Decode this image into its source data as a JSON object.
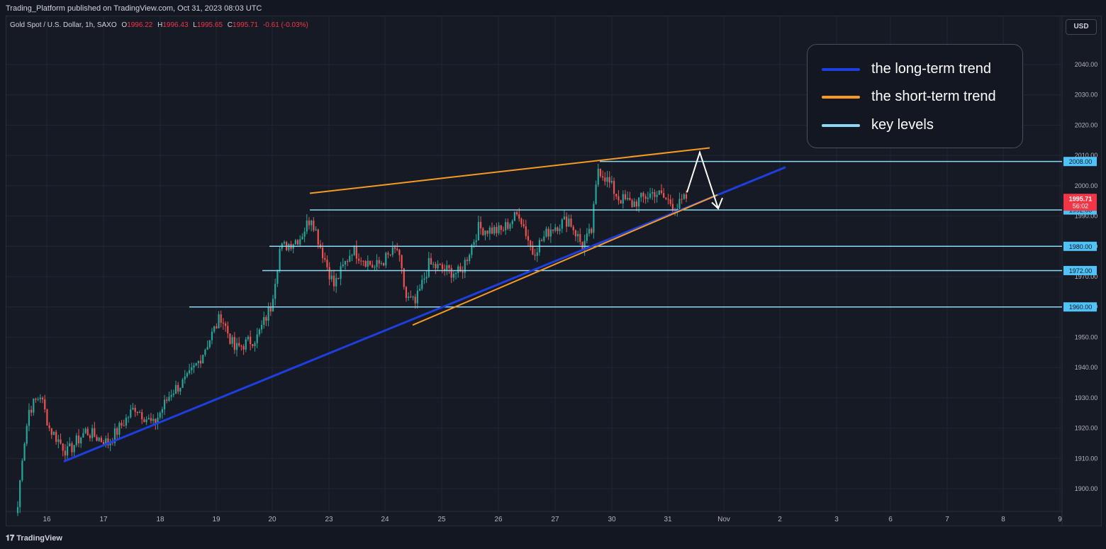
{
  "header": {
    "publish_line": "Trading_Platform published on TradingView.com, Oct 31, 2023 08:03 UTC"
  },
  "symbol": {
    "name": "Gold Spot / U.S. Dollar, 1h, SAXO",
    "open_label": "O",
    "open": "1996.22",
    "high_label": "H",
    "high": "1996.43",
    "low_label": "L",
    "low": "1995.65",
    "close_label": "C",
    "close": "1995.71",
    "change": "-0.61 (-0.03%)"
  },
  "currency_button": "USD",
  "legend": {
    "items": [
      {
        "label": "the long-term trend",
        "color": "#1e3fe0"
      },
      {
        "label": "the short-term trend",
        "color": "#f59a23"
      },
      {
        "label": "key levels",
        "color": "#8fd8f5"
      }
    ]
  },
  "footer": {
    "logo_icon": "tradingview-logo-icon",
    "brand": "TradingView"
  },
  "colors": {
    "up": "#26a69a",
    "down": "#ef5350",
    "long_trend": "#1e3fe0",
    "short_trend": "#f59a23",
    "key_level": "#8fd8f5",
    "price_label_bg": "#f23645",
    "level_label_bg": "#4fc3f7"
  },
  "chart_data": {
    "type": "candlestick",
    "title": "Gold Spot / U.S. Dollar, 1h, SAXO",
    "x_ticks": [
      "16",
      "17",
      "18",
      "19",
      "20",
      "23",
      "24",
      "25",
      "26",
      "27",
      "30",
      "31",
      "Nov",
      "2",
      "3",
      "6",
      "7",
      "8",
      "9"
    ],
    "y_ticks": [
      1900,
      1910,
      1920,
      1930,
      1940,
      1950,
      1960,
      1970,
      1980,
      1990,
      2000,
      2010,
      2020,
      2030,
      2040
    ],
    "ylim": [
      1893,
      2050
    ],
    "last_price": {
      "value": "1995.71",
      "countdown": "56:02"
    },
    "key_levels": [
      "2008.00",
      "1992.00",
      "1980.00",
      "1972.00",
      "1960.00"
    ],
    "price_anchors": [
      [
        0,
        1894
      ],
      [
        2,
        1911
      ],
      [
        5,
        1926
      ],
      [
        10,
        1931
      ],
      [
        14,
        1920
      ],
      [
        22,
        1912
      ],
      [
        30,
        1919
      ],
      [
        40,
        1915
      ],
      [
        52,
        1927
      ],
      [
        60,
        1921
      ],
      [
        68,
        1932
      ],
      [
        75,
        1936
      ],
      [
        80,
        1942
      ],
      [
        90,
        1957
      ],
      [
        96,
        1946
      ],
      [
        106,
        1950
      ],
      [
        112,
        1960
      ],
      [
        116,
        1979
      ],
      [
        125,
        1983
      ],
      [
        130,
        1990
      ],
      [
        134,
        1980
      ],
      [
        140,
        1967
      ],
      [
        148,
        1979
      ],
      [
        158,
        1973
      ],
      [
        168,
        1979
      ],
      [
        172,
        1963
      ],
      [
        176,
        1961
      ],
      [
        182,
        1974
      ],
      [
        190,
        1972
      ],
      [
        196,
        1971
      ],
      [
        204,
        1986
      ],
      [
        214,
        1985
      ],
      [
        222,
        1991
      ],
      [
        228,
        1978
      ],
      [
        236,
        1986
      ],
      [
        244,
        1989
      ],
      [
        250,
        1980
      ],
      [
        254,
        1985
      ],
      [
        257,
        2006
      ],
      [
        260,
        2003
      ],
      [
        266,
        1996
      ],
      [
        272,
        1994
      ],
      [
        282,
        1998
      ],
      [
        292,
        1993
      ],
      [
        296,
        1996
      ]
    ]
  }
}
